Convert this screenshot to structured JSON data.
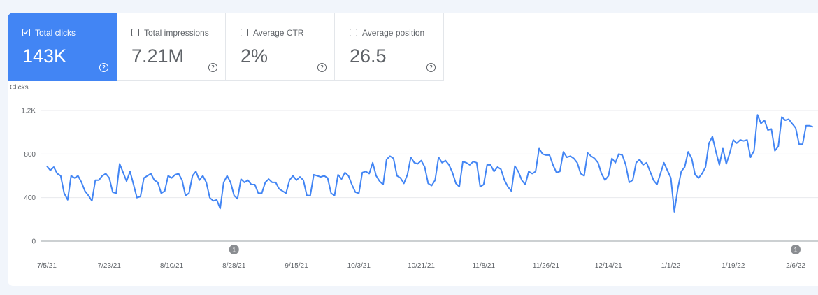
{
  "metrics": [
    {
      "label": "Total clicks",
      "value": "143K",
      "checked": true
    },
    {
      "label": "Total impressions",
      "value": "7.21M",
      "checked": false
    },
    {
      "label": "Average CTR",
      "value": "2%",
      "checked": false
    },
    {
      "label": "Average position",
      "value": "26.5",
      "checked": false
    }
  ],
  "help_glyph": "?",
  "chart_data": {
    "type": "line",
    "ylabel": "Clicks",
    "y_ticks": [
      {
        "v": 0,
        "label": "0"
      },
      {
        "v": 400,
        "label": "400"
      },
      {
        "v": 800,
        "label": "800"
      },
      {
        "v": 1200,
        "label": "1.2K"
      }
    ],
    "ylim": [
      0,
      1200
    ],
    "x_labels": [
      "7/5/21",
      "7/23/21",
      "8/10/21",
      "8/28/21",
      "9/15/21",
      "10/3/21",
      "10/21/21",
      "11/8/21",
      "11/26/21",
      "12/14/21",
      "1/1/22",
      "1/19/22",
      "2/6/22"
    ],
    "annotations": [
      {
        "label": "1",
        "x_day": 54
      },
      {
        "label": "1",
        "x_day": 216
      }
    ],
    "series": [
      {
        "color": "#4285f4",
        "values": [
          690,
          650,
          680,
          620,
          600,
          440,
          380,
          600,
          580,
          600,
          540,
          460,
          420,
          370,
          560,
          560,
          600,
          620,
          580,
          450,
          440,
          710,
          630,
          550,
          640,
          520,
          400,
          410,
          580,
          600,
          620,
          560,
          540,
          440,
          460,
          600,
          580,
          610,
          620,
          560,
          420,
          440,
          600,
          640,
          560,
          600,
          540,
          400,
          370,
          380,
          300,
          540,
          600,
          540,
          420,
          390,
          570,
          540,
          560,
          520,
          520,
          440,
          440,
          540,
          570,
          540,
          540,
          480,
          460,
          440,
          560,
          600,
          560,
          590,
          560,
          420,
          420,
          610,
          600,
          590,
          600,
          580,
          440,
          420,
          610,
          570,
          630,
          600,
          520,
          450,
          440,
          630,
          640,
          620,
          720,
          600,
          550,
          520,
          750,
          780,
          760,
          600,
          580,
          530,
          610,
          770,
          720,
          710,
          740,
          680,
          530,
          510,
          560,
          770,
          720,
          740,
          700,
          630,
          530,
          500,
          730,
          720,
          700,
          730,
          720,
          500,
          520,
          700,
          700,
          640,
          680,
          660,
          560,
          500,
          460,
          690,
          640,
          560,
          520,
          640,
          620,
          640,
          850,
          800,
          790,
          790,
          700,
          630,
          640,
          820,
          770,
          780,
          760,
          720,
          620,
          600,
          810,
          780,
          760,
          720,
          620,
          560,
          600,
          760,
          720,
          800,
          790,
          700,
          540,
          560,
          720,
          750,
          700,
          720,
          640,
          560,
          520,
          620,
          720,
          650,
          580,
          270,
          480,
          640,
          680,
          820,
          760,
          610,
          580,
          620,
          680,
          900,
          960,
          820,
          700,
          850,
          710,
          810,
          930,
          900,
          930,
          920,
          930,
          770,
          830,
          1160,
          1080,
          1110,
          1020,
          1030,
          830,
          870,
          1140,
          1110,
          1120,
          1080,
          1040,
          890,
          890,
          1060,
          1060,
          1050
        ]
      }
    ]
  }
}
